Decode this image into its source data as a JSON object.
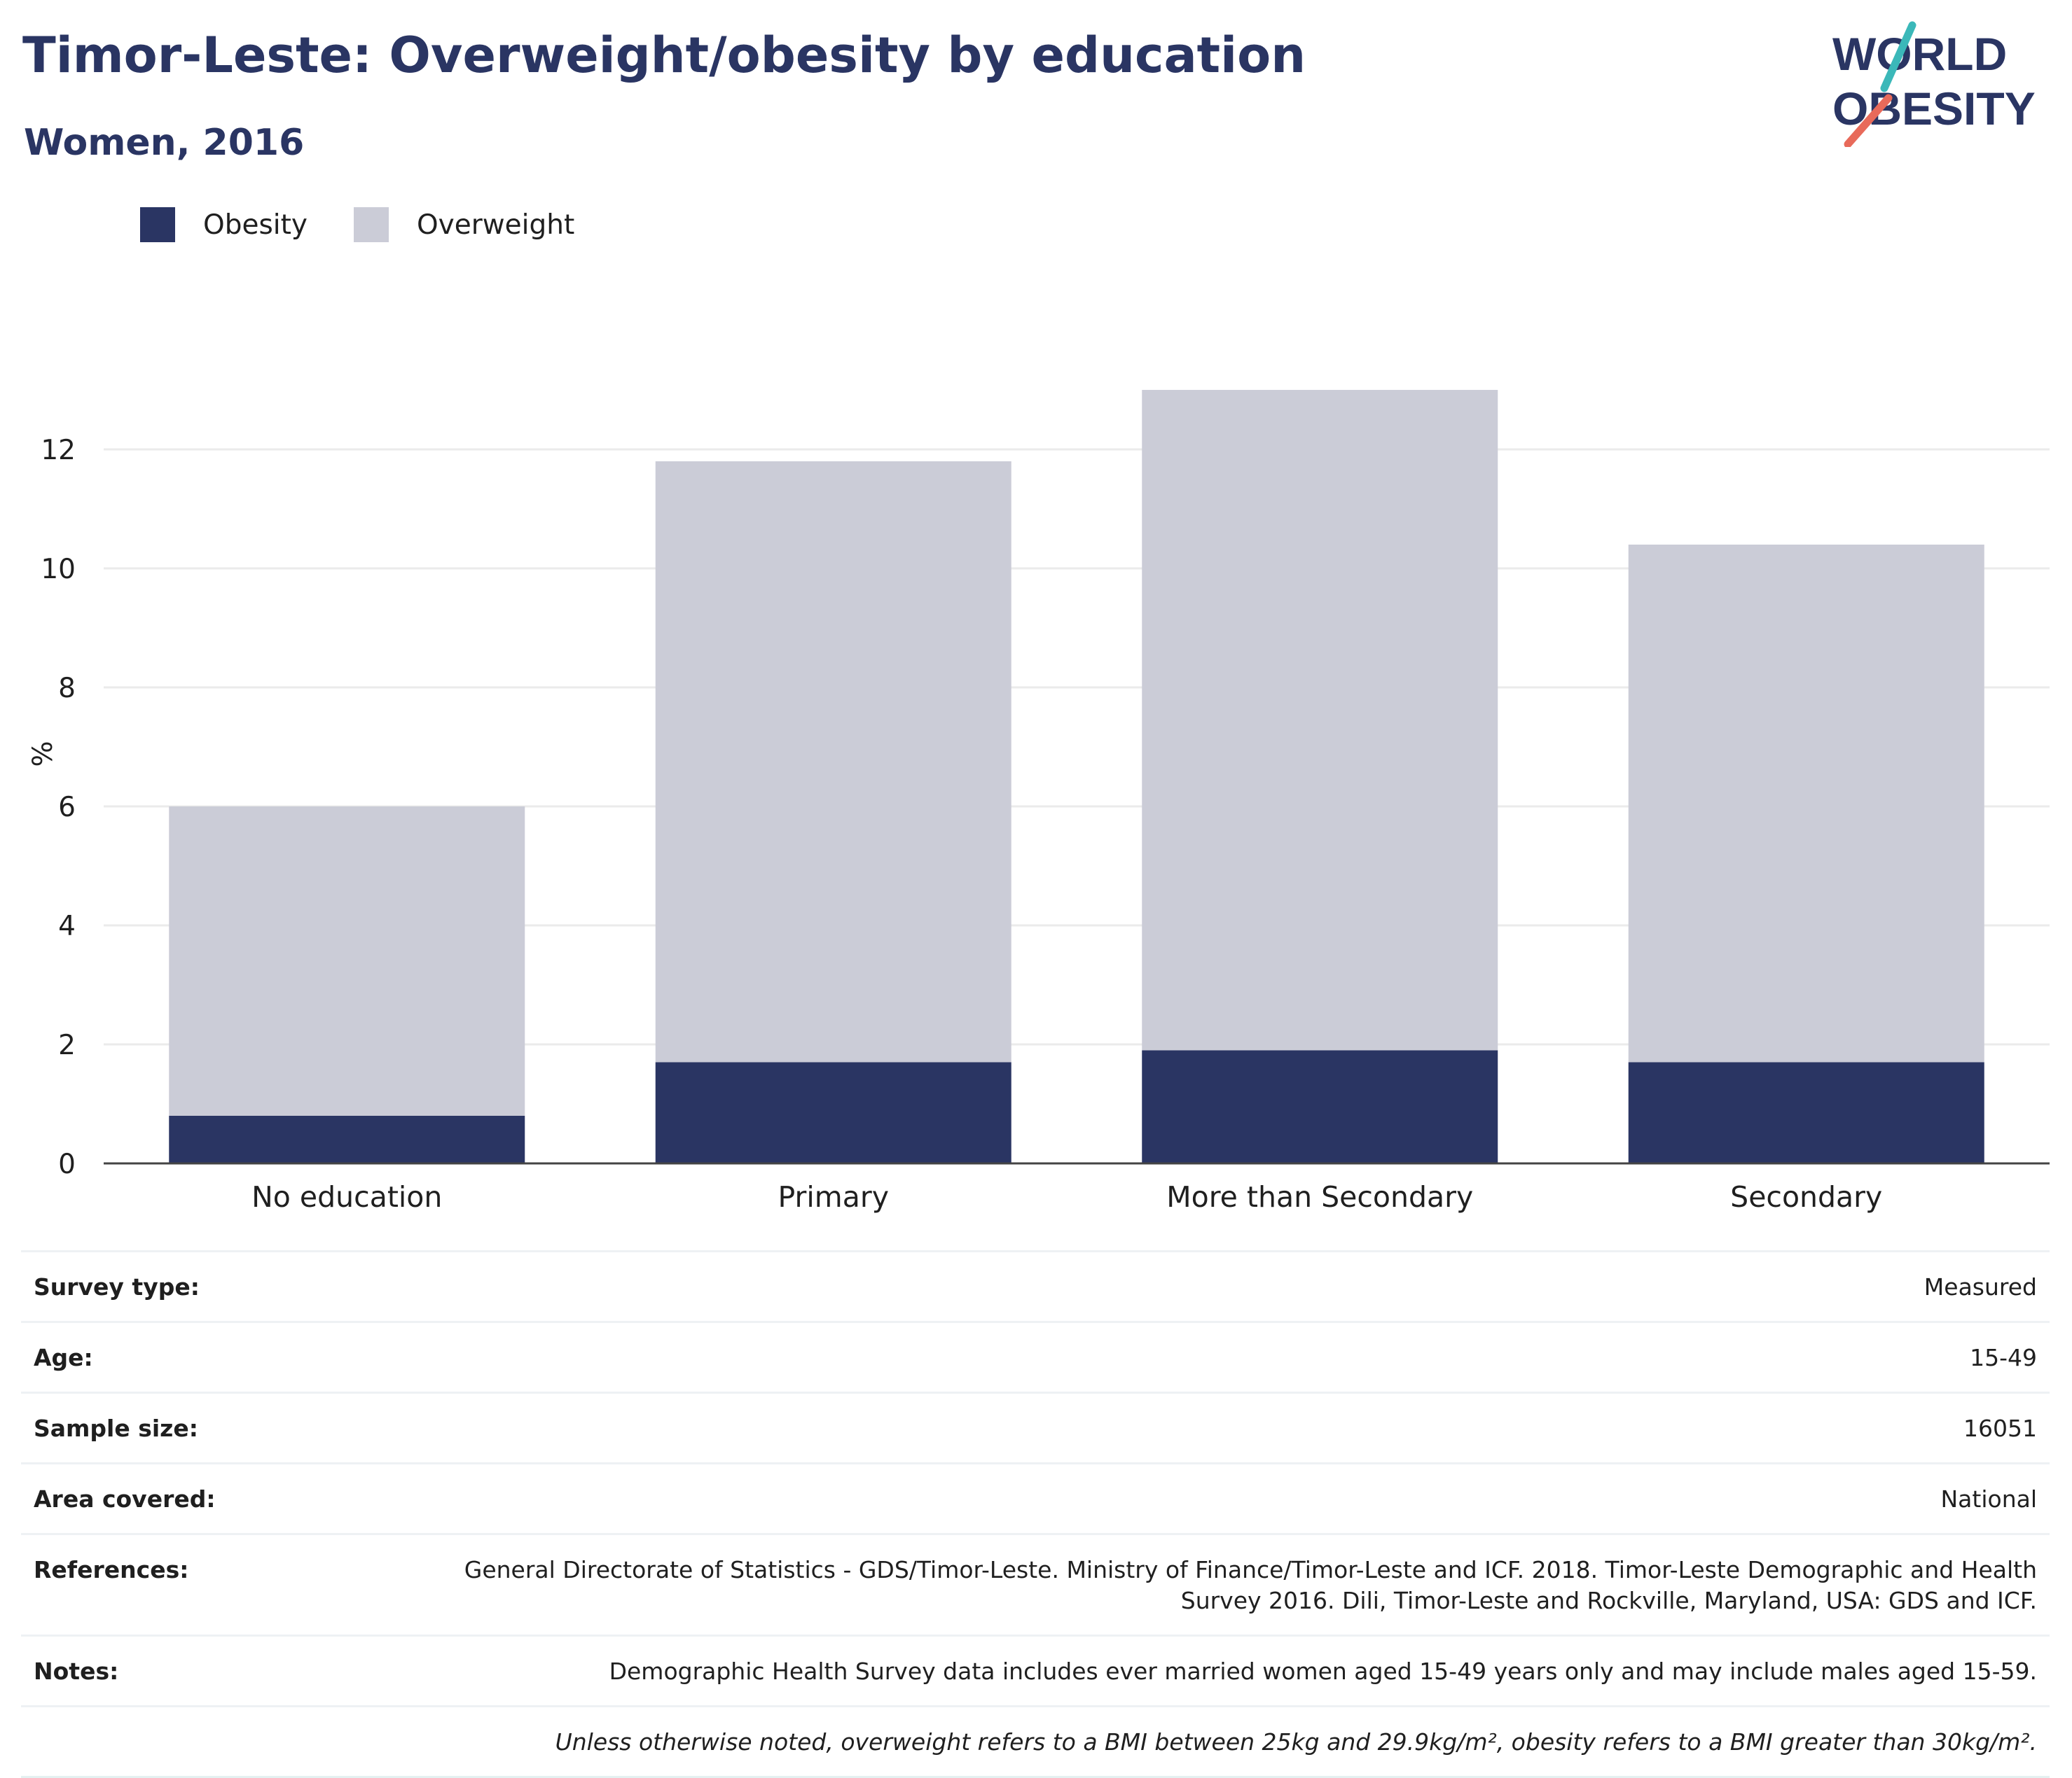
{
  "header": {
    "title": "Timor-Leste: Overweight/obesity by education",
    "subtitle": "Women, 2016"
  },
  "logo": {
    "line1": "WORLD",
    "line2": "OBESITY"
  },
  "colors": {
    "obesity": "#2a3563",
    "overweight": "#cbccd7",
    "title": "#2a3563",
    "logo_teal": "#3bb8b9",
    "logo_coral": "#e86a5a"
  },
  "chart_data": {
    "type": "bar",
    "stacked": true,
    "categories": [
      "No education",
      "Primary",
      "More than Secondary",
      "Secondary"
    ],
    "series": [
      {
        "name": "Obesity",
        "values": [
          0.8,
          1.7,
          1.9,
          1.7
        ]
      },
      {
        "name": "Overweight",
        "values": [
          5.2,
          10.1,
          11.1,
          8.7
        ]
      }
    ],
    "ylabel": "%",
    "yticks": [
      0,
      2,
      4,
      6,
      8,
      10,
      12
    ],
    "ylim": [
      0,
      14
    ],
    "grid": true,
    "legend_position": "top-left"
  },
  "info": [
    {
      "label": "Survey type:",
      "value": "Measured"
    },
    {
      "label": "Age:",
      "value": "15-49"
    },
    {
      "label": "Sample size:",
      "value": "16051"
    },
    {
      "label": "Area covered:",
      "value": "National"
    },
    {
      "label": "References:",
      "value": "General Directorate of Statistics - GDS/Timor-Leste. Ministry of Finance/Timor-Leste and ICF. 2018. Timor-Leste Demographic and Health Survey 2016. Dili, Timor-Leste and Rockville, Maryland, USA: GDS and ICF."
    },
    {
      "label": "Notes:",
      "value": "Demographic Health Survey data includes ever married women aged 15-49 years only and may include males aged 15-59."
    },
    {
      "label": "",
      "value": "Unless otherwise noted, overweight refers to a BMI between 25kg and 29.9kg/m², obesity refers to a BMI greater than 30kg/m²."
    }
  ]
}
